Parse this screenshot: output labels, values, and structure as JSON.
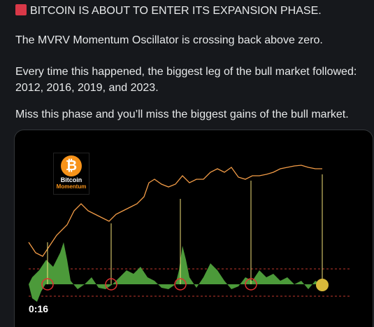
{
  "post": {
    "lines": [
      "BITCOIN IS ABOUT TO ENTER ITS EXPANSION PHASE.",
      "The MVRV Momentum Oscillator is crossing back above zero.",
      "Every time this happened, the biggest leg of the bull market followed: 2012, 2016, 2019, and 2023.",
      "Miss this phase and you’ll miss the biggest gains of the bull market."
    ]
  },
  "media": {
    "logo_title": "Bitcoin",
    "logo_subtitle": "Momentum",
    "timestamp": "0:16"
  }
}
